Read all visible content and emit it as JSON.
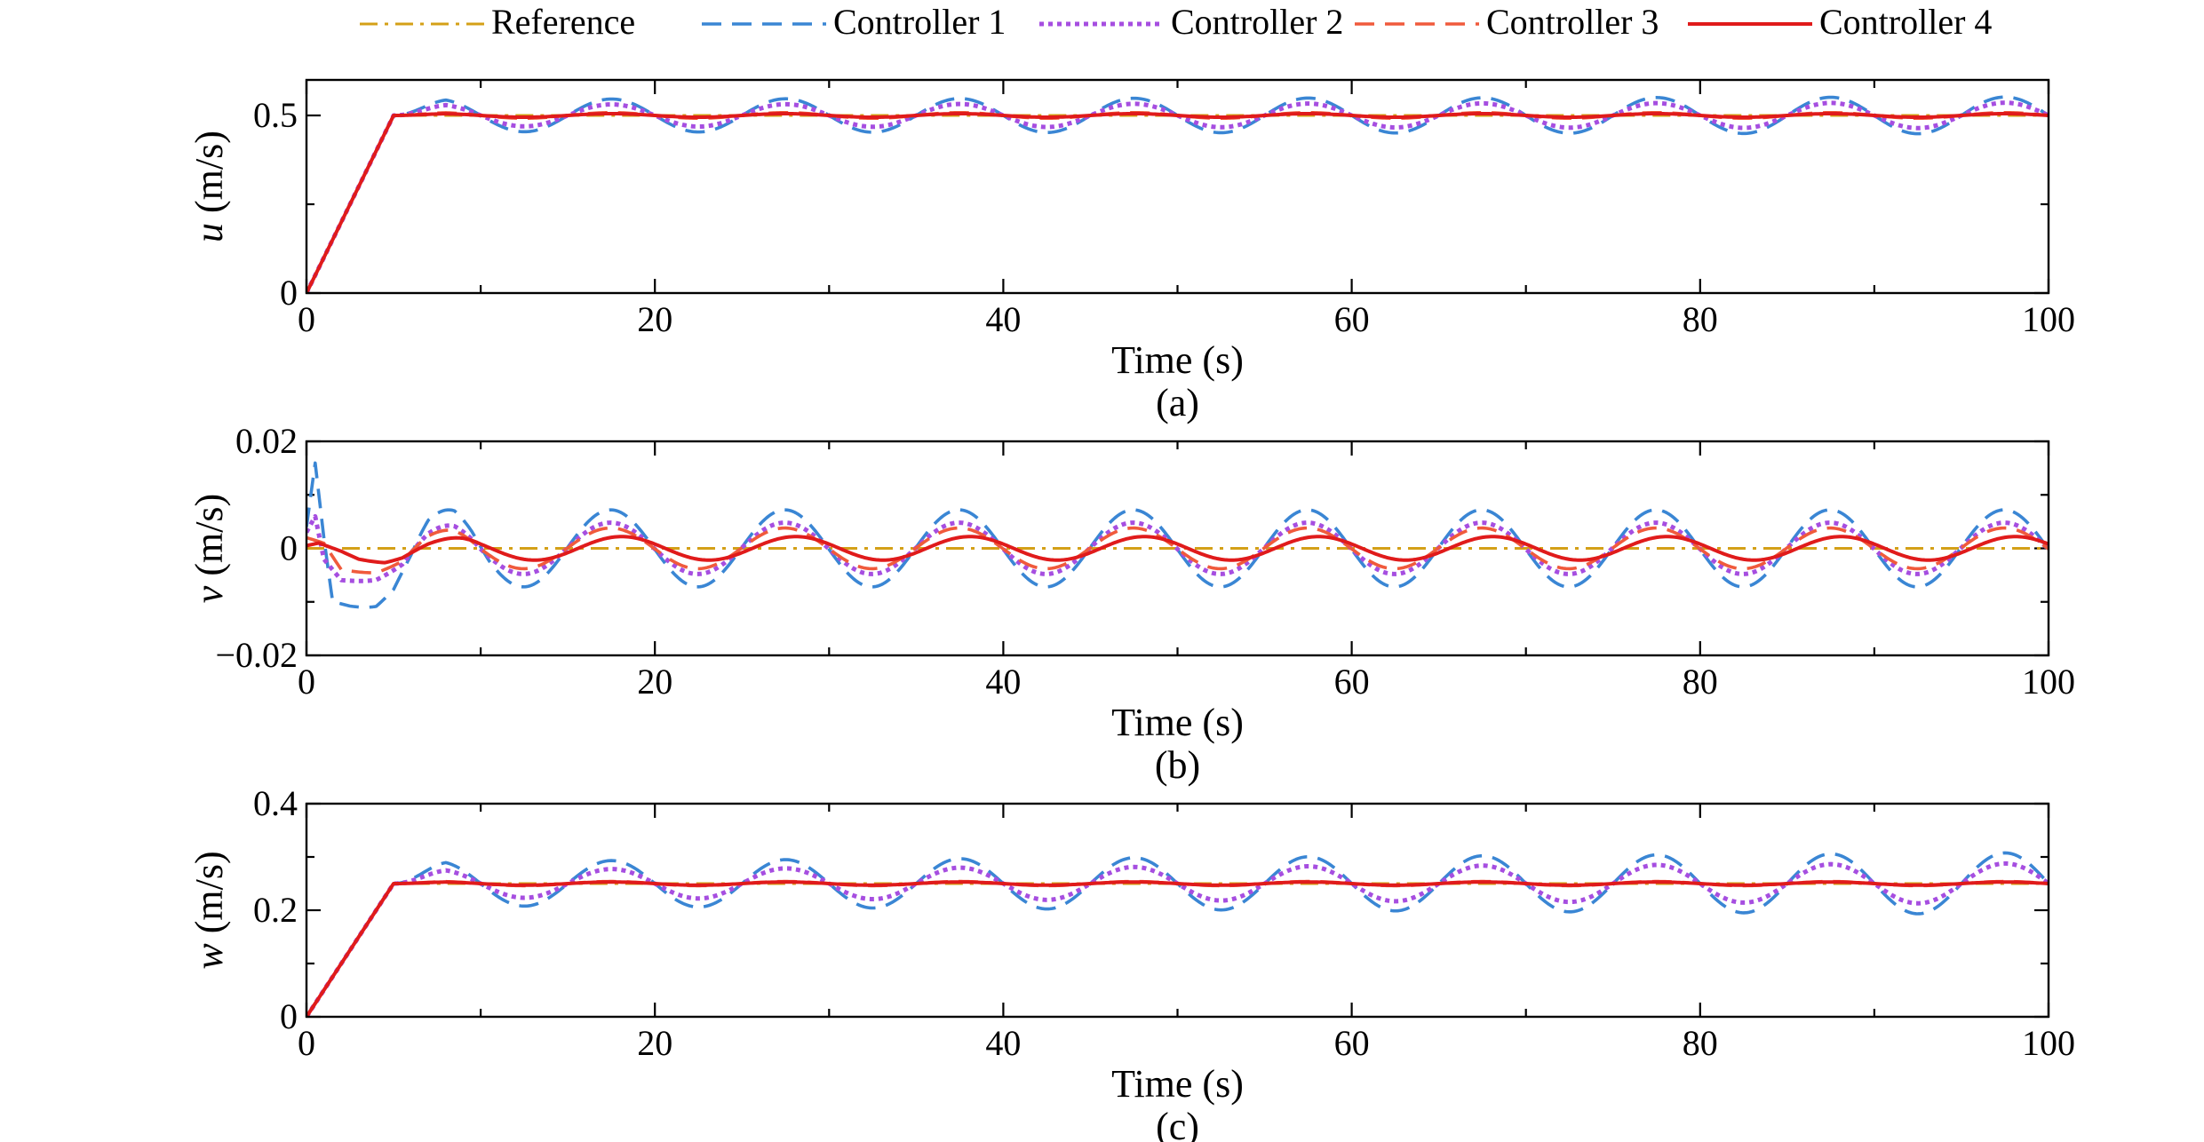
{
  "legend": {
    "placement": "top",
    "entries": [
      {
        "label": "Reference",
        "color": "#d4a017",
        "dash": "dashdot"
      },
      {
        "label": "Controller 1",
        "color": "#3a86d4",
        "dash": "dashed"
      },
      {
        "label": "Controller 2",
        "color": "#a64ee0",
        "dash": "dotted"
      },
      {
        "label": "Controller 3",
        "color": "#f05a3c",
        "dash": "dashed"
      },
      {
        "label": "Controller 4",
        "color": "#e01b1b",
        "dash": "solid"
      }
    ]
  },
  "chart_data": [
    {
      "type": "line",
      "panel_label": "(a)",
      "xlabel": "Time (s)",
      "ylabel_symbol": "u",
      "ylabel_unit": " (m/s)",
      "xlim": [
        0,
        100
      ],
      "ylim": [
        0,
        0.6
      ],
      "xticks": [
        0,
        20,
        40,
        60,
        80,
        100
      ],
      "xtick_labels": [
        "0",
        "20",
        "40",
        "60",
        "80",
        "100"
      ],
      "yticks": [
        0,
        0.5
      ],
      "ytick_labels": [
        "0",
        "0.5"
      ],
      "ramp_end": 5,
      "series": [
        {
          "name": "Reference",
          "final": 0.5,
          "amp_start": 0,
          "amp_end": 0,
          "phase": 0
        },
        {
          "name": "Controller 1",
          "final": 0.5,
          "amp_start": 0.045,
          "amp_end": 0.052,
          "phase": 0
        },
        {
          "name": "Controller 2",
          "final": 0.5,
          "amp_start": 0.03,
          "amp_end": 0.036,
          "phase": 0
        },
        {
          "name": "Controller 3",
          "final": 0.5,
          "amp_start": 0.008,
          "amp_end": 0.008,
          "phase": 0
        },
        {
          "name": "Controller 4",
          "final": 0.5,
          "amp_start": 0.005,
          "amp_end": 0.005,
          "phase": 0
        }
      ]
    },
    {
      "type": "line",
      "panel_label": "(b)",
      "xlabel": "Time (s)",
      "ylabel_symbol": "v",
      "ylabel_unit": " (m/s)",
      "xlim": [
        0,
        100
      ],
      "ylim": [
        -0.02,
        0.02
      ],
      "xticks": [
        0,
        20,
        40,
        60,
        80,
        100
      ],
      "xtick_labels": [
        "0",
        "20",
        "40",
        "60",
        "80",
        "100"
      ],
      "yticks": [
        -0.02,
        0,
        0.02
      ],
      "ytick_labels": [
        "−0.02",
        "0",
        "0.02"
      ],
      "series": [
        {
          "name": "Reference",
          "amp": 0,
          "phase": 0,
          "transient": [
            [
              0,
              0
            ],
            [
              100,
              0
            ]
          ]
        },
        {
          "name": "Controller 1",
          "amp": 0.0072,
          "phase": -0.6,
          "transient": [
            [
              0,
              0.004
            ],
            [
              0.5,
              0.016
            ],
            [
              1,
              0.002
            ],
            [
              1.5,
              -0.01
            ],
            [
              2.5,
              -0.011
            ],
            [
              4,
              -0.012
            ],
            [
              5,
              -0.01
            ],
            [
              6,
              -0.004
            ],
            [
              7,
              0.004
            ],
            [
              8.5,
              0.0095
            ],
            [
              9.5,
              0.008
            ],
            [
              10.5,
              0.002
            ]
          ]
        },
        {
          "name": "Controller 2",
          "amp": 0.0048,
          "phase": -0.6,
          "transient": [
            [
              0,
              0.003
            ],
            [
              0.5,
              0.006
            ],
            [
              1,
              -0.002
            ],
            [
              2,
              -0.006
            ],
            [
              4,
              -0.0065
            ],
            [
              5.5,
              -0.005
            ],
            [
              7,
              0.001
            ],
            [
              8.5,
              0.005
            ],
            [
              10,
              0.004
            ]
          ]
        },
        {
          "name": "Controller 3",
          "amp": 0.0038,
          "phase": -0.6,
          "transient": [
            [
              0,
              0.002
            ],
            [
              1,
              0.001
            ],
            [
              2,
              -0.004
            ],
            [
              4,
              -0.005
            ],
            [
              5.5,
              -0.004
            ],
            [
              7,
              0.001
            ],
            [
              8.5,
              0.004
            ],
            [
              10,
              0.003
            ]
          ]
        },
        {
          "name": "Controller 4",
          "amp": 0.0022,
          "phase": -1.0,
          "transient": [
            [
              0,
              0.0005
            ],
            [
              0.7,
              0.001
            ],
            [
              2,
              -0.0005
            ],
            [
              3,
              -0.002
            ],
            [
              4.5,
              -0.003
            ],
            [
              5.5,
              -0.0025
            ],
            [
              7,
              0.0
            ],
            [
              9,
              0.002
            ],
            [
              10,
              0.0022
            ]
          ]
        }
      ]
    },
    {
      "type": "line",
      "panel_label": "(c)",
      "xlabel": "Time (s)",
      "ylabel_symbol": "w",
      "ylabel_unit": " (m/s)",
      "xlim": [
        0,
        100
      ],
      "ylim": [
        0,
        0.4
      ],
      "xticks": [
        0,
        20,
        40,
        60,
        80,
        100
      ],
      "xtick_labels": [
        "0",
        "20",
        "40",
        "60",
        "80",
        "100"
      ],
      "yticks": [
        0,
        0.2,
        0.4
      ],
      "ytick_labels": [
        "0",
        "0.2",
        "0.4"
      ],
      "ramp_end": 5,
      "series": [
        {
          "name": "Reference",
          "final": 0.25,
          "amp_start": 0,
          "amp_end": 0,
          "phase": 0
        },
        {
          "name": "Controller 1",
          "final": 0.25,
          "amp_start": 0.04,
          "amp_end": 0.058,
          "phase": 0
        },
        {
          "name": "Controller 2",
          "final": 0.25,
          "amp_start": 0.025,
          "amp_end": 0.038,
          "phase": 0
        },
        {
          "name": "Controller 3",
          "final": 0.25,
          "amp_start": 0.004,
          "amp_end": 0.004,
          "phase": 0
        },
        {
          "name": "Controller 4",
          "final": 0.25,
          "amp_start": 0.003,
          "amp_end": 0.003,
          "phase": 0
        }
      ]
    }
  ]
}
